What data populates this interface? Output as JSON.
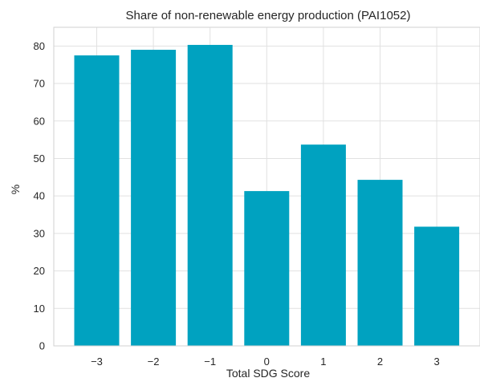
{
  "chart_data": {
    "type": "bar",
    "title": "Share of non-renewable energy production (PAI1052)",
    "xlabel": "Total SDG Score",
    "ylabel": "%",
    "categories": [
      "−3",
      "−2",
      "−1",
      "0",
      "1",
      "2",
      "3"
    ],
    "values": [
      77.5,
      79.0,
      80.3,
      41.3,
      53.7,
      44.3,
      31.8
    ],
    "ylim": [
      0,
      85
    ],
    "yticks": [
      0,
      10,
      20,
      30,
      40,
      50,
      60,
      70,
      80
    ],
    "grid": true,
    "legend": "none",
    "colors": {
      "bar": "#00a2c0",
      "grid": "#e1e1e1",
      "frame": "#d2d2d2",
      "text": "#262626"
    }
  }
}
